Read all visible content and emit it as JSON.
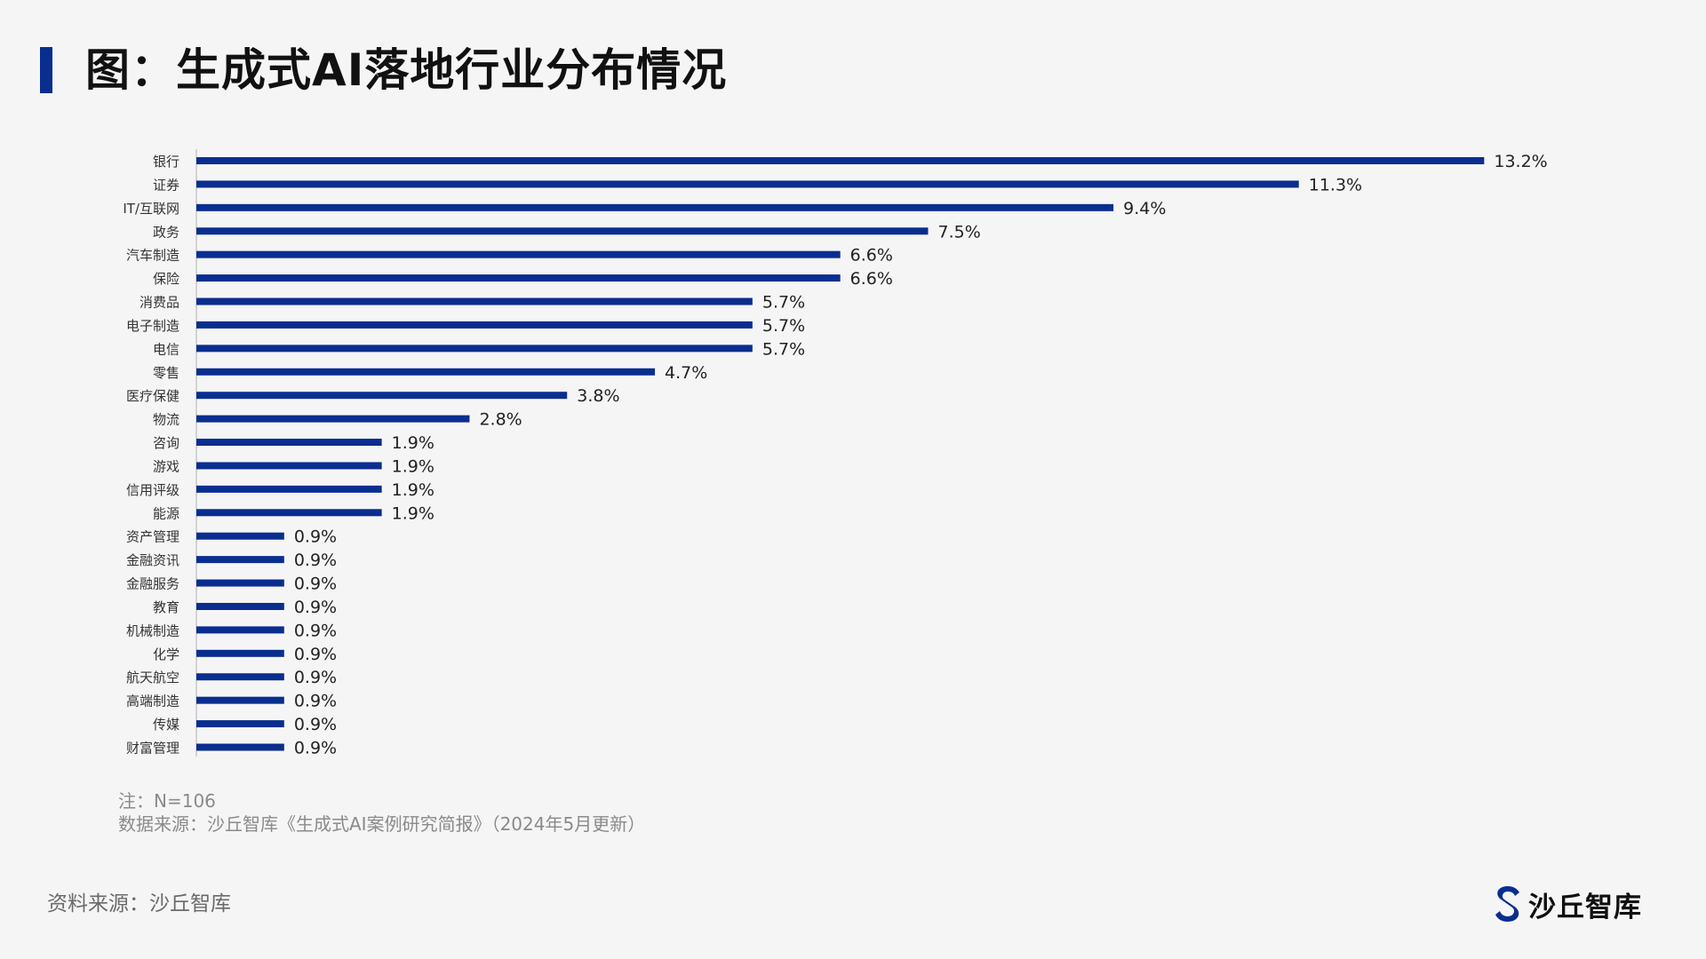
{
  "header": {
    "title": "图：生成式AI落地行业分布情况"
  },
  "chart_data": {
    "type": "bar",
    "orientation": "horizontal",
    "title": "图：生成式AI落地行业分布情况",
    "xlabel": "",
    "ylabel": "",
    "xlim": [
      0,
      14
    ],
    "grid": false,
    "legend": "none",
    "bar_color": "#0a2e8f",
    "categories": [
      "银行",
      "证券",
      "IT/互联网",
      "政务",
      "汽车制造",
      "保险",
      "消费品",
      "电子制造",
      "电信",
      "零售",
      "医疗保健",
      "物流",
      "咨询",
      "游戏",
      "信用评级",
      "能源",
      "资产管理",
      "金融资讯",
      "金融服务",
      "教育",
      "机械制造",
      "化学",
      "航天航空",
      "高端制造",
      "传媒",
      "财富管理"
    ],
    "values": [
      13.2,
      11.3,
      9.4,
      7.5,
      6.6,
      6.6,
      5.7,
      5.7,
      5.7,
      4.7,
      3.8,
      2.8,
      1.9,
      1.9,
      1.9,
      1.9,
      0.9,
      0.9,
      0.9,
      0.9,
      0.9,
      0.9,
      0.9,
      0.9,
      0.9,
      0.9
    ],
    "value_labels": [
      "13.2%",
      "11.3%",
      "9.4%",
      "7.5%",
      "6.6%",
      "6.6%",
      "5.7%",
      "5.7%",
      "5.7%",
      "4.7%",
      "3.8%",
      "2.8%",
      "1.9%",
      "1.9%",
      "1.9%",
      "1.9%",
      "0.9%",
      "0.9%",
      "0.9%",
      "0.9%",
      "0.9%",
      "0.9%",
      "0.9%",
      "0.9%",
      "0.9%",
      "0.9%"
    ]
  },
  "notes": {
    "line1": "注：N=106",
    "line2": "数据来源：沙丘智库《生成式AI案例研究简报》（2024年5月更新）"
  },
  "footer": {
    "source": "资料来源：沙丘智库",
    "brand_name": "沙丘智库",
    "brand_icon": "sand-dune-s-logo-icon",
    "brand_color": "#0a2e8f"
  }
}
